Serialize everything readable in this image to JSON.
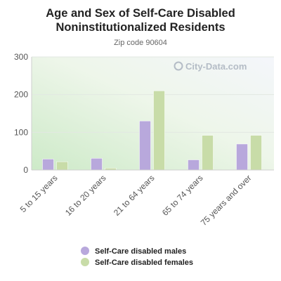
{
  "chart_data": {
    "type": "bar",
    "title": "Age and Sex of Self-Care Disabled Noninstitutionalized Residents",
    "subtitle": "Zip code 90604",
    "categories": [
      "5 to 15 years",
      "16 to 20 years",
      "21 to 64 years",
      "65 to 74 years",
      "75 years and over"
    ],
    "series": [
      {
        "name": "Self-Care disabled males",
        "color": "#b8a8dc",
        "values": [
          29,
          31,
          130,
          27,
          69
        ]
      },
      {
        "name": "Self-Care disabled females",
        "color": "#c8dca8",
        "values": [
          22,
          5,
          210,
          92,
          92
        ]
      }
    ],
    "ylim": [
      0,
      300
    ],
    "yticks": [
      0,
      100,
      200,
      300
    ],
    "grid": true,
    "legend_position": "bottom",
    "watermark": "City-Data.com"
  }
}
